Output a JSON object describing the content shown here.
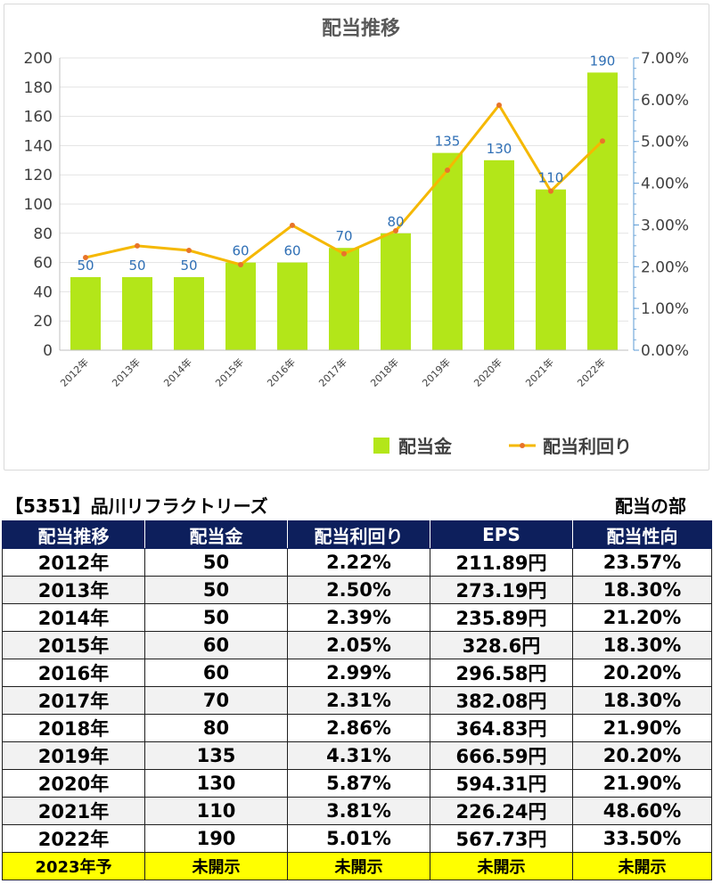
{
  "chart_data": {
    "type": "bar",
    "title": "配当推移",
    "categories": [
      "2012年",
      "2013年",
      "2014年",
      "2015年",
      "2016年",
      "2017年",
      "2018年",
      "2019年",
      "2020年",
      "2021年",
      "2022年"
    ],
    "series": [
      {
        "name": "配当金",
        "type": "bar",
        "axis": "left",
        "color": "#b3e619",
        "values": [
          50,
          50,
          50,
          60,
          60,
          70,
          80,
          135,
          130,
          110,
          190
        ]
      },
      {
        "name": "配当利回り",
        "type": "line",
        "axis": "right",
        "color": "#f5b800",
        "marker_color": "#e8742a",
        "values": [
          2.22,
          2.5,
          2.39,
          2.05,
          2.99,
          2.31,
          2.86,
          4.31,
          5.87,
          3.81,
          5.01
        ]
      }
    ],
    "y_left": {
      "min": 0,
      "max": 200,
      "ticks": [
        "0",
        "20",
        "40",
        "60",
        "80",
        "100",
        "120",
        "140",
        "160",
        "180",
        "200"
      ]
    },
    "y_right": {
      "min": 0,
      "max": 7,
      "ticks": [
        "0.00%",
        "1.00%",
        "2.00%",
        "3.00%",
        "4.00%",
        "5.00%",
        "6.00%",
        "7.00%"
      ]
    },
    "data_labels": [
      "50",
      "50",
      "50",
      "60",
      "60",
      "70",
      "80",
      "135",
      "130",
      "110",
      "190"
    ],
    "grid": true,
    "legend_position": "bottom-right"
  },
  "table": {
    "company": "【5351】品川リフラクトリーズ",
    "section": "配当の部",
    "headers": [
      "配当推移",
      "配当金",
      "配当利回り",
      "EPS",
      "配当性向"
    ],
    "rows": [
      [
        "2012年",
        "50",
        "2.22%",
        "211.89円",
        "23.57%"
      ],
      [
        "2013年",
        "50",
        "2.50%",
        "273.19円",
        "18.30%"
      ],
      [
        "2014年",
        "50",
        "2.39%",
        "235.89円",
        "21.20%"
      ],
      [
        "2015年",
        "60",
        "2.05%",
        "328.6円",
        "18.30%"
      ],
      [
        "2016年",
        "60",
        "2.99%",
        "296.58円",
        "20.20%"
      ],
      [
        "2017年",
        "70",
        "2.31%",
        "382.08円",
        "18.30%"
      ],
      [
        "2018年",
        "80",
        "2.86%",
        "364.83円",
        "21.90%"
      ],
      [
        "2019年",
        "135",
        "4.31%",
        "666.59円",
        "20.20%"
      ],
      [
        "2020年",
        "130",
        "5.87%",
        "594.31円",
        "21.90%"
      ],
      [
        "2021年",
        "110",
        "3.81%",
        "226.24円",
        "48.60%"
      ],
      [
        "2022年",
        "190",
        "5.01%",
        "567.73円",
        "33.50%"
      ]
    ],
    "forecast_row": [
      "2023年予",
      "未開示",
      "未開示",
      "未開示",
      "未開示"
    ],
    "forecast_color": "#ffff00",
    "header_color": "#0d1f5c"
  }
}
